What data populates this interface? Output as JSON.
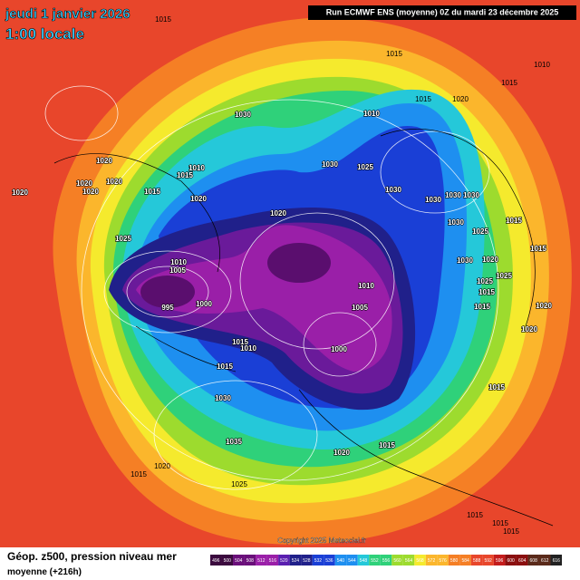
{
  "header": {
    "title": "jeudi 1 janvier 2026",
    "subtitle": "1:00 locale",
    "run": "Run ECMWF ENS (moyenne) 0Z du mardi 23 décembre 2025"
  },
  "isobars": [
    1015,
    1015,
    1010,
    1015,
    1015,
    1020,
    1010,
    1030,
    1020,
    1010,
    1015,
    1020,
    1020,
    1020,
    1020,
    1015,
    1020,
    1030,
    1025,
    1030,
    1030,
    1030,
    1030,
    1020,
    1015,
    1030,
    1025,
    1025,
    1015,
    1010,
    1005,
    1030,
    1020,
    1025,
    1025,
    1010,
    1015,
    1000,
    995,
    1005,
    1015,
    1020,
    1020,
    1015,
    1010,
    1000,
    1015,
    1015,
    1030,
    1035,
    1015,
    1020,
    1020,
    1015,
    1025,
    1015,
    1015,
    1015
  ],
  "footer": {
    "title": "Géop. z500, pression niveau mer",
    "subtitle": "moyenne  (+216h)",
    "copyright": "Copyright 2025 Meteociel.fr"
  },
  "colorbar": {
    "labels": [
      496,
      500,
      504,
      508,
      512,
      516,
      520,
      524,
      528,
      532,
      536,
      540,
      544,
      548,
      552,
      556,
      560,
      564,
      568,
      572,
      576,
      580,
      584,
      588,
      592,
      596,
      600,
      604,
      608,
      612,
      616
    ]
  }
}
